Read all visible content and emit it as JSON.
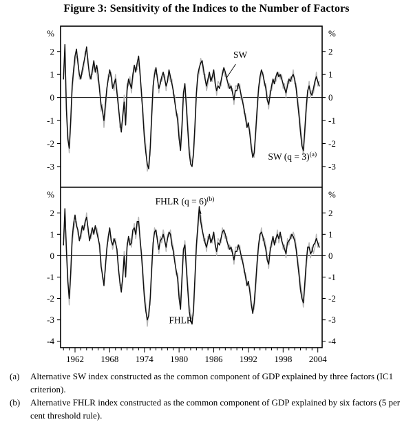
{
  "title": "Figure 3: Sensitivity of the Indices to the Number of Factors",
  "footnotes": [
    {
      "marker": "(a)",
      "text": "Alternative SW index constructed as the common component of GDP explained by three factors (IC1 criterion)."
    },
    {
      "marker": "(b)",
      "text": "Alternative FHLR index constructed as the common component of GDP explained by six factors (5 per cent threshold rule)."
    }
  ],
  "chart_data": {
    "type": "line",
    "frequency": "quarterly",
    "x_start": 1960.0,
    "x_step": 0.25,
    "xlim": [
      1959.5,
      2004.75
    ],
    "x_tick_years": [
      1962,
      1968,
      1974,
      1980,
      1986,
      1992,
      1998,
      2004
    ],
    "x_minor_tick_every": 1,
    "axis_unit": "%",
    "grid": false,
    "legend": "in-plot annotations",
    "panels": [
      {
        "name": "SW",
        "ylim": [
          -3.9,
          3.1
        ],
        "yticks": [
          2,
          1,
          0,
          -1,
          -2,
          -3
        ],
        "series": [
          {
            "name": "SW (q = 3)",
            "color": "#b7b7b7",
            "width": 1.5,
            "values": [
              1.0,
              2.0,
              -0.2,
              -1.5,
              -2.4,
              -1.3,
              0.2,
              1.0,
              1.5,
              1.8,
              1.7,
              0.8,
              1.0,
              1.0,
              1.3,
              2.0,
              1.9,
              1.7,
              0.8,
              1.0,
              1.0,
              1.4,
              1.3,
              1.1,
              0.7,
              0.5,
              -0.6,
              -0.3,
              -1.3,
              -0.6,
              0.2,
              1.0,
              0.9,
              1.1,
              0.6,
              0.3,
              1.0,
              0.4,
              -0.2,
              -1.3,
              -1.2,
              -1.0,
              0.1,
              -0.9,
              0.6,
              0.5,
              0.9,
              0.2,
              0.8,
              1.2,
              1.3,
              1.2,
              1.5,
              1.2,
              -0.1,
              -0.5,
              -1.5,
              -2.1,
              -3.2,
              -2.8,
              -2.5,
              -1.1,
              0.2,
              1.2,
              1.0,
              1.0,
              0.2,
              0.8,
              0.7,
              0.9,
              1.0,
              0.3,
              0.9,
              1.0,
              0.7,
              0.8,
              0.1,
              0.1,
              -0.8,
              -0.7,
              -1.5,
              -2.0,
              -1.5,
              0.0,
              0.4,
              -0.1,
              -1.1,
              -2.1,
              -2.6,
              -2.8,
              -2.6,
              -1.5,
              0.0,
              0.8,
              1.1,
              1.7,
              1.4,
              1.0,
              1.0,
              0.3,
              0.6,
              0.9,
              0.9,
              0.7,
              1.0,
              0.8,
              0.1,
              0.7,
              0.6,
              0.5,
              1.2,
              1.1,
              0.9,
              1.0,
              0.4,
              0.6,
              0.3,
              0.4,
              -0.3,
              0.5,
              0.5,
              0.4,
              0.6,
              -0.1,
              0.0,
              -0.7,
              -0.7,
              -1.1,
              -1.3,
              -1.4,
              -2.0,
              -2.4,
              -2.6,
              -1.7,
              -0.8,
              0.2,
              0.7,
              1.0,
              1.1,
              0.5,
              0.6,
              0.1,
              -0.5,
              0.3,
              0.3,
              0.6,
              0.8,
              0.7,
              0.9,
              1.1,
              0.8,
              1.0,
              0.4,
              0.6,
              0.0,
              0.7,
              0.6,
              0.9,
              0.7,
              1.2,
              0.6,
              0.6,
              0.0,
              -0.5,
              -1.2,
              -1.8,
              -2.5,
              -1.7,
              -0.7,
              0.1,
              0.7,
              0.0,
              0.3,
              0.2,
              0.5,
              1.1,
              0.5,
              0.7
            ]
          },
          {
            "name": "SW",
            "color": "#111111",
            "width": 1.5,
            "values": [
              0.8,
              2.3,
              -0.5,
              -1.8,
              -2.2,
              -1.0,
              0.5,
              1.2,
              1.8,
              2.1,
              1.5,
              1.0,
              0.8,
              1.2,
              1.5,
              1.8,
              2.2,
              1.5,
              1.0,
              0.8,
              1.2,
              1.6,
              1.1,
              1.4,
              1.0,
              0.3,
              -0.3,
              -0.6,
              -1.0,
              -0.3,
              0.4,
              0.8,
              1.2,
              0.9,
              0.4,
              0.6,
              0.8,
              0.2,
              -0.4,
              -1.0,
              -1.5,
              -0.8,
              -0.2,
              -1.2,
              0.3,
              0.8,
              0.6,
              0.4,
              1.0,
              1.4,
              1.1,
              1.5,
              1.8,
              1.0,
              0.2,
              -0.8,
              -1.8,
              -2.4,
              -2.9,
              -3.1,
              -2.2,
              -0.8,
              0.5,
              1.0,
              1.3,
              0.8,
              0.4,
              0.6,
              0.9,
              1.1,
              0.8,
              0.5,
              0.7,
              1.2,
              0.9,
              0.6,
              0.3,
              -0.2,
              -0.6,
              -1.0,
              -1.8,
              -2.3,
              -1.2,
              0.2,
              0.6,
              -0.4,
              -1.4,
              -2.4,
              -2.9,
              -3.0,
              -2.4,
              -1.2,
              0.2,
              1.0,
              1.3,
              1.5,
              1.6,
              1.2,
              0.8,
              0.5,
              0.8,
              1.1,
              0.7,
              0.9,
              1.2,
              0.6,
              0.3,
              0.5,
              0.4,
              0.7,
              1.0,
              1.3,
              1.1,
              0.8,
              0.6,
              0.4,
              0.5,
              0.2,
              -0.1,
              0.3,
              0.3,
              0.6,
              0.4,
              0.1,
              -0.2,
              -0.5,
              -0.9,
              -1.3,
              -1.1,
              -1.6,
              -2.2,
              -2.6,
              -2.4,
              -1.5,
              -0.5,
              0.4,
              0.9,
              1.2,
              1.0,
              0.7,
              0.4,
              -0.1,
              -0.3,
              0.1,
              0.5,
              0.8,
              0.6,
              0.9,
              1.1,
              0.9,
              1.0,
              0.8,
              0.6,
              0.4,
              0.2,
              0.5,
              0.8,
              0.7,
              0.9,
              1.0,
              0.8,
              0.4,
              -0.2,
              -0.8,
              -1.5,
              -2.1,
              -2.3,
              -1.4,
              -0.4,
              0.3,
              0.5,
              0.2,
              0.1,
              0.4,
              0.7,
              0.9,
              0.7,
              0.5
            ]
          }
        ],
        "annotations": [
          {
            "label": "SW",
            "sup": "",
            "x": 1990.6,
            "y": 1.72,
            "leader": [
              [
                1989.8,
                1.45
              ],
              [
                1988.2,
                0.85
              ]
            ]
          },
          {
            "label": "SW (q = 3)",
            "sup": "(a)",
            "x": 1999.6,
            "y": -2.7,
            "leader": null
          }
        ]
      },
      {
        "name": "FHLR",
        "ylim": [
          -4.3,
          3.2
        ],
        "yticks": [
          2,
          1,
          0,
          -1,
          -2,
          -3,
          -4
        ],
        "series": [
          {
            "name": "FHLR (q = 6)",
            "color": "#b7b7b7",
            "width": 1.5,
            "values": [
              0.8,
              1.8,
              0.6,
              -0.9,
              -2.3,
              -1.1,
              0.5,
              1.2,
              1.6,
              1.6,
              1.0,
              0.9,
              0.8,
              1.2,
              1.4,
              1.4,
              2.0,
              1.1,
              0.9,
              0.8,
              1.1,
              1.2,
              1.2,
              1.3,
              1.0,
              0.2,
              -0.2,
              -1.1,
              -1.1,
              -0.7,
              0.5,
              0.7,
              1.1,
              0.9,
              0.3,
              0.6,
              0.8,
              0.1,
              -0.4,
              -1.4,
              -1.4,
              -1.2,
              0.2,
              -0.8,
              0.6,
              0.7,
              0.8,
              0.4,
              1.0,
              1.5,
              0.8,
              1.4,
              1.8,
              0.6,
              0.2,
              -0.7,
              -1.7,
              -2.3,
              -3.3,
              -2.5,
              -2.3,
              -0.9,
              0.3,
              1.3,
              1.0,
              0.9,
              0.1,
              0.9,
              0.6,
              1.2,
              0.9,
              0.2,
              1.0,
              0.9,
              1.2,
              0.7,
              0.4,
              -0.1,
              -0.9,
              -0.8,
              -1.7,
              -2.2,
              -1.3,
              0.1,
              0.7,
              -0.3,
              -1.3,
              -2.3,
              -2.7,
              -2.9,
              -2.8,
              -1.3,
              0.2,
              1.1,
              1.9,
              1.9,
              1.4,
              0.7,
              0.8,
              0.2,
              0.9,
              0.8,
              0.8,
              0.6,
              0.9,
              0.7,
              0.0,
              0.8,
              0.7,
              0.6,
              1.3,
              1.0,
              0.8,
              0.9,
              0.3,
              0.5,
              0.2,
              0.3,
              -0.4,
              0.4,
              0.4,
              0.3,
              0.5,
              -0.2,
              -0.1,
              -0.8,
              -0.8,
              -1.2,
              -1.4,
              -1.5,
              -2.1,
              -2.5,
              -2.5,
              -1.6,
              -0.6,
              0.3,
              0.8,
              1.3,
              0.7,
              0.8,
              0.5,
              0.0,
              -0.6,
              0.4,
              0.4,
              0.7,
              0.7,
              0.6,
              1.2,
              0.6,
              0.9,
              0.9,
              0.3,
              0.5,
              -0.1,
              0.8,
              0.5,
              1.0,
              0.8,
              1.1,
              0.9,
              0.5,
              -0.1,
              -0.6,
              -1.3,
              -1.7,
              -2.4,
              -1.6,
              -0.6,
              0.2,
              0.6,
              -0.1,
              0.4,
              0.1,
              0.4,
              1.0,
              0.4,
              0.6
            ]
          },
          {
            "name": "FHLR",
            "color": "#111111",
            "width": 1.5,
            "values": [
              0.5,
              2.2,
              0.3,
              -1.2,
              -2.0,
              -0.8,
              0.8,
              1.5,
              1.9,
              1.4,
              1.2,
              0.7,
              1.0,
              1.4,
              1.2,
              1.6,
              1.8,
              1.3,
              0.7,
              1.0,
              1.3,
              1.0,
              1.4,
              1.1,
              0.8,
              0.5,
              -0.5,
              -0.9,
              -1.4,
              -0.5,
              0.3,
              0.9,
              1.3,
              0.7,
              0.5,
              0.8,
              0.6,
              0.3,
              -0.6,
              -1.2,
              -1.7,
              -1.0,
              0.0,
              -1.0,
              0.4,
              0.9,
              0.5,
              0.6,
              1.2,
              1.3,
              1.0,
              1.6,
              1.6,
              0.8,
              0.0,
              -1.0,
              -2.0,
              -2.6,
              -3.0,
              -2.8,
              -2.0,
              -0.6,
              0.6,
              1.1,
              1.2,
              0.7,
              0.3,
              0.7,
              0.8,
              1.0,
              0.7,
              0.4,
              0.8,
              1.1,
              1.0,
              0.5,
              0.2,
              -0.3,
              -0.7,
              -1.1,
              -2.0,
              -2.5,
              -1.0,
              0.3,
              0.5,
              -0.6,
              -1.6,
              -2.6,
              -3.0,
              -3.2,
              -2.5,
              -1.0,
              0.5,
              1.4,
              2.3,
              1.6,
              1.2,
              0.9,
              0.6,
              0.4,
              0.7,
              1.0,
              0.6,
              0.8,
              1.1,
              0.5,
              0.2,
              0.6,
              0.5,
              0.8,
              1.1,
              1.2,
              1.0,
              0.7,
              0.5,
              0.3,
              0.4,
              0.1,
              -0.2,
              0.2,
              0.2,
              0.5,
              0.3,
              0.0,
              -0.3,
              -0.6,
              -1.0,
              -1.4,
              -1.2,
              -1.7,
              -2.3,
              -2.7,
              -2.2,
              -1.3,
              -0.3,
              0.5,
              1.0,
              1.1,
              0.9,
              0.6,
              0.3,
              -0.2,
              -0.4,
              0.2,
              0.6,
              0.9,
              0.5,
              0.8,
              1.0,
              0.8,
              1.1,
              0.7,
              0.5,
              0.3,
              0.1,
              0.6,
              0.7,
              0.8,
              1.0,
              0.9,
              0.7,
              0.3,
              -0.3,
              -0.9,
              -1.6,
              -2.0,
              -2.2,
              -1.3,
              -0.3,
              0.4,
              0.4,
              0.1,
              0.2,
              0.5,
              0.6,
              0.8,
              0.6,
              0.4
            ]
          }
        ],
        "annotations": [
          {
            "label": "FHLR (q = 6)",
            "sup": "(b)",
            "x": 1981.0,
            "y": 2.4,
            "leader": [
              [
                1983.6,
                2.15
              ],
              [
                1983.8,
                1.95
              ]
            ]
          },
          {
            "label": "FHLR",
            "sup": "",
            "x": 1980.3,
            "y": -3.15,
            "leader": null
          }
        ]
      }
    ]
  }
}
